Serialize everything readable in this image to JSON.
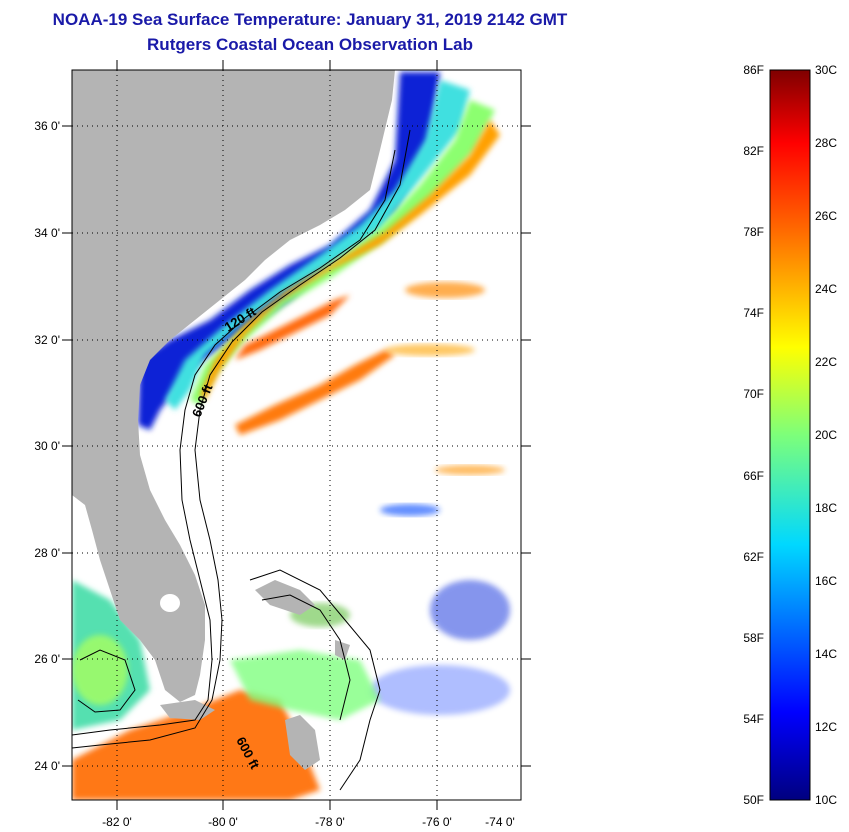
{
  "header": {
    "title": "NOAA-19 Sea Surface Temperature:  January 31, 2019 2142 GMT",
    "subtitle": "Rutgers Coastal Ocean Observation Lab"
  },
  "map": {
    "lat_labels": [
      "36 0'",
      "34 0'",
      "32 0'",
      "30 0'",
      "28 0'",
      "26 0'",
      "24 0'"
    ],
    "lon_labels": [
      "-82 0'",
      "-80 0'",
      "-78 0'",
      "-76 0'",
      "-74 0'"
    ],
    "contour_labels": [
      "120 ft",
      "600 ft",
      "600 ft"
    ],
    "land_color": "#b4b4b4",
    "grid": "dotted"
  },
  "colorbar": {
    "fahrenheit_labels": [
      "86F",
      "82F",
      "78F",
      "74F",
      "70F",
      "66F",
      "62F",
      "58F",
      "54F",
      "50F"
    ],
    "celsius_labels": [
      "30C",
      "28C",
      "26C",
      "24C",
      "22C",
      "20C",
      "18C",
      "16C",
      "14C",
      "12C",
      "10C"
    ],
    "colormap": "jet",
    "min_c": 10,
    "max_c": 30
  }
}
